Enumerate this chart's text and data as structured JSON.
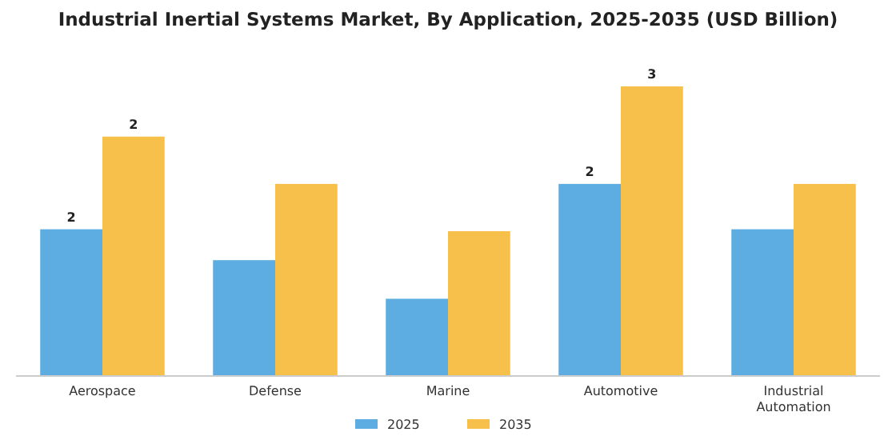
{
  "chart_data": {
    "type": "bar",
    "title": "Industrial Inertial Systems Market, By Application, 2025-2035 (USD Billion)",
    "ylabel": null,
    "categories": [
      "Aerospace",
      "Defense",
      "Marine",
      "Automotive",
      "Industrial Automation"
    ],
    "series": [
      {
        "name": "2025",
        "color": "#5dade2",
        "values": [
          1.52,
          1.2,
          0.8,
          1.99,
          1.52
        ],
        "value_labels": [
          "2",
          null,
          null,
          "2",
          null
        ]
      },
      {
        "name": "2035",
        "color": "#f7c04a",
        "values": [
          2.48,
          1.99,
          1.5,
          3.0,
          1.99
        ],
        "value_labels": [
          "2",
          null,
          null,
          "3",
          null
        ]
      }
    ],
    "legend": "bottom",
    "grid": false
  }
}
